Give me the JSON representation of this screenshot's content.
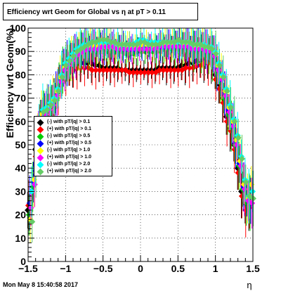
{
  "title": "Efficiency wrt Geom for Global vs   η at pT > 0.11",
  "footer_date": "Mon May  8 15:40:58 2017",
  "chart_data": {
    "type": "scatter",
    "xlabel": "η",
    "ylabel": "Efficiency wrt Geom(%)",
    "xlim": [
      -1.5,
      1.5
    ],
    "ylim": [
      0,
      100
    ],
    "x_ticks": [
      "−1.5",
      "−1",
      "−0.5",
      "0",
      "0.5",
      "1",
      "1.5"
    ],
    "y_ticks": [
      "0",
      "10",
      "20",
      "30",
      "40",
      "50",
      "60",
      "70",
      "80",
      "90",
      "100"
    ],
    "grid": true,
    "legend_position": "middle-left",
    "x": [
      -1.475,
      -1.425,
      -1.375,
      -1.325,
      -1.275,
      -1.225,
      -1.175,
      -1.125,
      -1.075,
      -1.025,
      -0.975,
      -0.925,
      -0.875,
      -0.825,
      -0.775,
      -0.725,
      -0.675,
      -0.625,
      -0.575,
      -0.525,
      -0.475,
      -0.425,
      -0.375,
      -0.325,
      -0.275,
      -0.225,
      -0.175,
      -0.125,
      -0.075,
      -0.025,
      0.025,
      0.075,
      0.125,
      0.175,
      0.225,
      0.275,
      0.325,
      0.375,
      0.425,
      0.475,
      0.525,
      0.575,
      0.625,
      0.675,
      0.725,
      0.775,
      0.825,
      0.875,
      0.925,
      0.975,
      1.025,
      1.075,
      1.125,
      1.175,
      1.225,
      1.275,
      1.325,
      1.375,
      1.425,
      1.475
    ],
    "series": [
      {
        "name": "(-) with pT/|q| > 0.1",
        "color": "#000000",
        "values": [
          22,
          30,
          48,
          58,
          60,
          62,
          65,
          68,
          75,
          80,
          82,
          83,
          84,
          84,
          85,
          85,
          85,
          85,
          84,
          84,
          83,
          83,
          83,
          83,
          83,
          82,
          82,
          82,
          82,
          82,
          82,
          82,
          82,
          82,
          82,
          83,
          83,
          83,
          83,
          83,
          83,
          84,
          84,
          85,
          85,
          86,
          86,
          86,
          85,
          85,
          80,
          76,
          70,
          62,
          57,
          50,
          40,
          30,
          25,
          24
        ]
      },
      {
        "name": "(+) with pT/|q| > 0.1",
        "color": "#ff0000",
        "values": [
          24,
          28,
          45,
          56,
          58,
          60,
          63,
          66,
          73,
          78,
          80,
          81,
          82,
          83,
          83,
          83,
          83,
          82,
          82,
          82,
          82,
          82,
          82,
          82,
          82,
          82,
          82,
          81,
          81,
          81,
          81,
          81,
          81,
          81,
          81,
          82,
          82,
          82,
          82,
          82,
          82,
          82,
          83,
          83,
          83,
          84,
          84,
          85,
          85,
          85,
          78,
          74,
          68,
          60,
          56,
          48,
          38,
          28,
          22,
          23
        ]
      },
      {
        "name": "(-) with pT/|q| > 0.5",
        "color": "#00cc00",
        "values": [
          20,
          32,
          50,
          60,
          62,
          64,
          66,
          70,
          77,
          82,
          84,
          86,
          88,
          89,
          90,
          90,
          90,
          90,
          90,
          91,
          91,
          90,
          90,
          90,
          90,
          90,
          89,
          89,
          89,
          90,
          90,
          90,
          90,
          90,
          90,
          90,
          91,
          91,
          91,
          91,
          91,
          91,
          90,
          90,
          90,
          90,
          89,
          88,
          88,
          87,
          81,
          77,
          70,
          63,
          58,
          50,
          41,
          31,
          25,
          25
        ]
      },
      {
        "name": "(+) with pT/|q| > 0.5",
        "color": "#0000ff",
        "values": [
          25,
          34,
          52,
          62,
          63,
          65,
          68,
          72,
          78,
          83,
          85,
          87,
          89,
          90,
          91,
          91,
          91,
          92,
          92,
          92,
          92,
          92,
          92,
          92,
          92,
          92,
          91,
          91,
          91,
          92,
          92,
          92,
          92,
          92,
          92,
          92,
          92,
          93,
          93,
          93,
          93,
          93,
          93,
          92,
          92,
          92,
          92,
          91,
          91,
          89,
          83,
          78,
          72,
          65,
          59,
          51,
          42,
          32,
          27,
          26
        ]
      },
      {
        "name": "(-) with pT/|q| > 1.0",
        "color": "#ffff00",
        "values": [
          18,
          35,
          55,
          63,
          64,
          66,
          69,
          73,
          79,
          83,
          85,
          87,
          89,
          90,
          91,
          92,
          92,
          92,
          92,
          93,
          92,
          92,
          92,
          92,
          92,
          93,
          92,
          92,
          92,
          92,
          93,
          93,
          93,
          92,
          92,
          93,
          93,
          93,
          93,
          94,
          94,
          93,
          93,
          93,
          92,
          92,
          92,
          91,
          91,
          90,
          84,
          79,
          73,
          66,
          60,
          52,
          43,
          33,
          27,
          33
        ]
      },
      {
        "name": "(+) with pT/|q| > 1.0",
        "color": "#ff00ff",
        "values": [
          23,
          33,
          53,
          61,
          63,
          65,
          67,
          71,
          77,
          82,
          84,
          86,
          88,
          89,
          90,
          91,
          91,
          91,
          91,
          92,
          92,
          92,
          92,
          91,
          91,
          91,
          91,
          91,
          91,
          91,
          91,
          91,
          91,
          91,
          92,
          92,
          92,
          92,
          92,
          92,
          92,
          92,
          92,
          91,
          91,
          91,
          91,
          90,
          90,
          88,
          82,
          78,
          71,
          64,
          58,
          50,
          41,
          31,
          26,
          25
        ]
      },
      {
        "name": "(-) with pT/|q| > 2.0",
        "color": "#00ffff",
        "values": [
          30,
          40,
          58,
          65,
          66,
          68,
          70,
          74,
          80,
          85,
          87,
          89,
          91,
          92,
          93,
          93,
          94,
          94,
          94,
          94,
          94,
          94,
          94,
          93,
          93,
          93,
          93,
          93,
          94,
          95,
          95,
          94,
          94,
          94,
          94,
          94,
          94,
          94,
          94,
          94,
          94,
          94,
          94,
          93,
          93,
          93,
          93,
          92,
          92,
          90,
          85,
          80,
          74,
          67,
          61,
          54,
          45,
          35,
          28,
          30
        ]
      },
      {
        "name": "(+) with pT/|q| > 2.0",
        "color": "#66cc66",
        "values": [
          17,
          38,
          56,
          64,
          65,
          67,
          69,
          73,
          79,
          84,
          86,
          88,
          90,
          91,
          92,
          93,
          94,
          94,
          95,
          95,
          95,
          94,
          94,
          93,
          93,
          93,
          93,
          93,
          93,
          94,
          94,
          93,
          93,
          93,
          93,
          94,
          94,
          94,
          94,
          95,
          94,
          94,
          94,
          93,
          93,
          93,
          92,
          92,
          91,
          89,
          84,
          79,
          73,
          66,
          60,
          53,
          44,
          34,
          28,
          27
        ]
      }
    ]
  }
}
